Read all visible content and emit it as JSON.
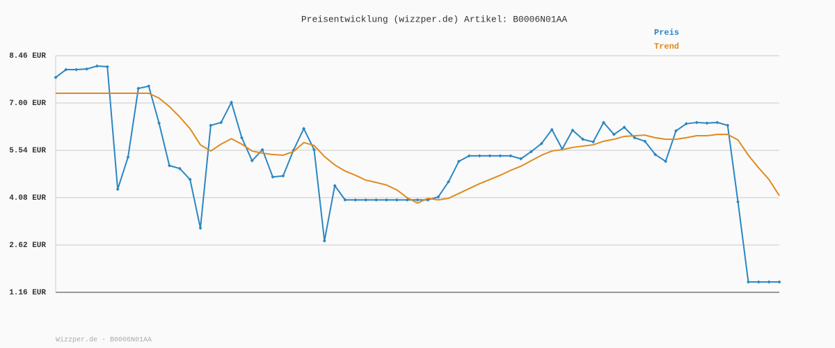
{
  "chart_data": {
    "type": "line",
    "title": "Preisentwicklung (wizzper.de) Artikel: B0006N01AA",
    "footer": "Wizzper.de - B0006N01AA",
    "categories": [
      null,
      null,
      null,
      null,
      null,
      null,
      null,
      null,
      null,
      null,
      null,
      null,
      null,
      null,
      null,
      null,
      null,
      null,
      null,
      null,
      null,
      null,
      null,
      null,
      null,
      null,
      null,
      null,
      null,
      null,
      null,
      null,
      null,
      null,
      null,
      null,
      null,
      null,
      null,
      null,
      null,
      null,
      null,
      null,
      null,
      null,
      null,
      null,
      null,
      null,
      null,
      null,
      null,
      null,
      null,
      null,
      null,
      null,
      null,
      null,
      null,
      null,
      null,
      null,
      null,
      null,
      null,
      null,
      null,
      null,
      null
    ],
    "series": [
      {
        "name": "Preis",
        "color": "#2a86c2",
        "markers": true,
        "values": [
          7.79,
          8.03,
          8.03,
          8.05,
          8.14,
          8.12,
          4.34,
          5.33,
          7.45,
          7.52,
          6.38,
          5.07,
          4.98,
          4.64,
          3.14,
          6.31,
          6.4,
          7.02,
          5.93,
          5.22,
          5.56,
          4.72,
          4.75,
          5.54,
          6.21,
          5.56,
          2.75,
          4.45,
          4.01,
          4.01,
          4.01,
          4.01,
          4.01,
          4.01,
          4.01,
          4.01,
          4.01,
          4.1,
          4.57,
          5.2,
          5.37,
          5.37,
          5.37,
          5.37,
          5.37,
          5.28,
          5.5,
          5.75,
          6.18,
          5.58,
          6.16,
          5.88,
          5.8,
          6.4,
          6.03,
          6.25,
          5.93,
          5.82,
          5.41,
          5.2,
          6.14,
          6.36,
          6.4,
          6.38,
          6.4,
          6.31,
          3.95,
          1.48,
          1.48,
          1.48,
          1.48
        ]
      },
      {
        "name": "Trend",
        "color": "#e08a1e",
        "markers": false,
        "values": [
          7.3,
          7.3,
          7.3,
          7.3,
          7.3,
          7.3,
          7.3,
          7.3,
          7.3,
          7.3,
          7.15,
          6.89,
          6.57,
          6.21,
          5.71,
          5.52,
          5.73,
          5.9,
          5.73,
          5.52,
          5.45,
          5.41,
          5.39,
          5.5,
          5.78,
          5.69,
          5.35,
          5.09,
          4.9,
          4.77,
          4.62,
          4.55,
          4.47,
          4.32,
          4.08,
          3.91,
          4.06,
          4.01,
          4.06,
          4.21,
          4.36,
          4.51,
          4.64,
          4.77,
          4.92,
          5.05,
          5.22,
          5.39,
          5.52,
          5.56,
          5.63,
          5.67,
          5.71,
          5.82,
          5.88,
          5.97,
          5.99,
          6.01,
          5.93,
          5.88,
          5.88,
          5.93,
          5.99,
          5.99,
          6.03,
          6.03,
          5.86,
          5.39,
          5.0,
          4.64,
          4.14
        ]
      }
    ],
    "ylim": [
      1.16,
      8.46
    ],
    "yticks": [
      {
        "value": 1.16,
        "label": "1.16 EUR"
      },
      {
        "value": 2.62,
        "label": "2.62 EUR"
      },
      {
        "value": 4.08,
        "label": "4.08 EUR"
      },
      {
        "value": 5.54,
        "label": "5.54 EUR"
      },
      {
        "value": 7.0,
        "label": "7.00 EUR"
      },
      {
        "value": 8.46,
        "label": "8.46 EUR"
      }
    ],
    "grid": true
  }
}
